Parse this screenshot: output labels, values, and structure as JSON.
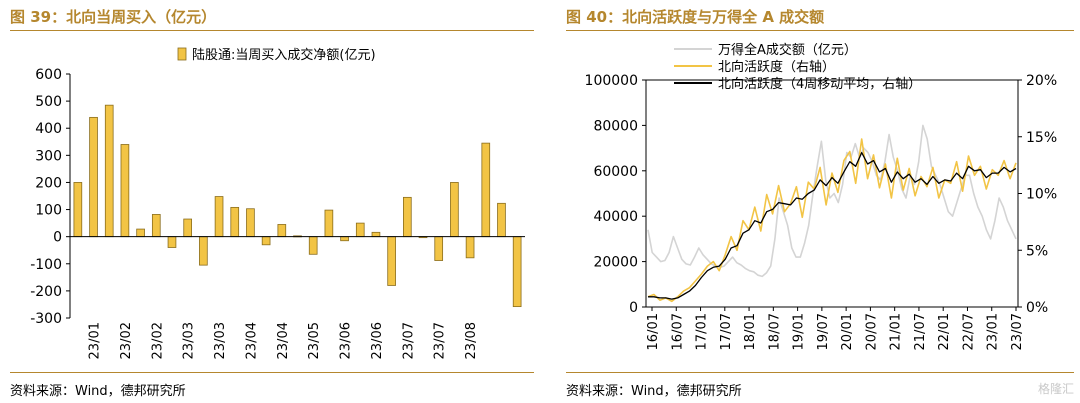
{
  "left": {
    "title": "图 39：北向当周买入（亿元）",
    "source": "资料来源：Wind，德邦研究所",
    "chart_data": {
      "type": "bar",
      "legend": "陆股通:当周买入成交净额(亿元)",
      "legend_position": "top-right",
      "ylim": [
        -300,
        600
      ],
      "yticks": [
        600,
        500,
        400,
        300,
        200,
        100,
        0,
        -100,
        -200,
        -300
      ],
      "xticks": [
        "23/01",
        "23/02",
        "23/02",
        "23/03",
        "23/03",
        "23/04",
        "23/04",
        "23/05",
        "23/06",
        "23/06",
        "23/07",
        "23/07",
        "23/08"
      ],
      "values": [
        200,
        440,
        485,
        340,
        28,
        82,
        -40,
        65,
        -105,
        148,
        108,
        103,
        -30,
        45,
        3,
        -65,
        98,
        -15,
        50,
        16,
        -180,
        145,
        -3,
        -88,
        200,
        -78,
        345,
        123,
        -258
      ],
      "bar_color": "#f2c445"
    }
  },
  "right": {
    "title": "图 40：北向活跃度与万得全 A 成交额",
    "source": "资料来源：Wind，德邦研究所",
    "watermark": "格隆汇",
    "chart_data": {
      "type": "line",
      "legend_position": "top",
      "xticks": [
        "16/01",
        "16/07",
        "17/01",
        "17/07",
        "18/01",
        "18/07",
        "19/01",
        "19/07",
        "20/01",
        "20/07",
        "21/01",
        "21/07",
        "22/01",
        "22/07",
        "23/01",
        "23/07"
      ],
      "x_range": [
        "2016-01",
        "2023-08"
      ],
      "left_axis": {
        "ylim": [
          0,
          100000
        ],
        "ticks": [
          0,
          20000,
          40000,
          60000,
          80000,
          100000
        ]
      },
      "right_axis": {
        "ylim": [
          0,
          20
        ],
        "ticks": [
          "0%",
          "5%",
          "10%",
          "15%",
          "20%"
        ]
      },
      "series": [
        {
          "name": "万得全A成交额（亿元）",
          "axis": "left",
          "color": "#d4d4d4",
          "values": [
            34000,
            24000,
            22000,
            20000,
            20500,
            24000,
            31000,
            26000,
            21000,
            19000,
            18500,
            22000,
            26000,
            23000,
            21000,
            19000,
            18000,
            17500,
            18000,
            20000,
            22000,
            19500,
            18500,
            17000,
            16000,
            15500,
            14000,
            13500,
            15000,
            18000,
            30000,
            48000,
            42000,
            36000,
            26000,
            22000,
            22000,
            28000,
            36000,
            50000,
            62000,
            73000,
            56000,
            48000,
            50000,
            46000,
            54000,
            68000,
            66000,
            72000,
            66000,
            70000,
            68000,
            64000,
            58000,
            56000,
            64000,
            76000,
            66000,
            60000,
            52000,
            48000,
            58000,
            54000,
            64000,
            80000,
            74000,
            62000,
            58000,
            54000,
            48000,
            42000,
            40000,
            46000,
            52000,
            58000,
            58000,
            50000,
            44000,
            40000,
            34000,
            30000,
            38000,
            48000,
            44000,
            38000,
            34000,
            30000
          ]
        },
        {
          "name": "北向活跃度（右轴）",
          "axis": "right",
          "color": "#f2c445",
          "values": [
            0.9,
            1.1,
            0.6,
            0.8,
            0.5,
            0.9,
            1.4,
            1.7,
            2.3,
            2.9,
            3.6,
            4.0,
            3.2,
            4.6,
            6.2,
            5.0,
            7.6,
            6.8,
            8.8,
            6.7,
            9.9,
            8.2,
            10.7,
            8.4,
            9.1,
            10.6,
            7.9,
            11.0,
            10.4,
            12.3,
            9.0,
            11.8,
            10.1,
            12.9,
            13.7,
            10.9,
            14.8,
            11.3,
            13.4,
            10.5,
            12.6,
            9.6,
            13.1,
            10.3,
            12.2,
            9.8,
            11.5,
            10.6,
            12.3,
            9.6,
            11.2,
            10.9,
            12.8,
            10.2,
            13.3,
            11.6,
            12.4,
            10.4,
            12.1,
            11.6,
            12.9,
            11.3,
            12.7
          ]
        },
        {
          "name": "北向活跃度（4周移动平均，右轴）",
          "axis": "right",
          "color": "#000000",
          "values": [
            0.9,
            0.9,
            0.8,
            0.8,
            0.7,
            0.8,
            1.1,
            1.4,
            1.9,
            2.6,
            3.2,
            3.5,
            3.6,
            4.2,
            5.2,
            5.4,
            6.5,
            6.8,
            7.6,
            7.4,
            8.4,
            8.6,
            9.2,
            9.1,
            9.0,
            9.6,
            9.5,
            10.0,
            10.3,
            11.2,
            10.7,
            11.4,
            10.9,
            11.9,
            12.8,
            12.4,
            13.6,
            12.6,
            12.9,
            11.9,
            12.2,
            11.0,
            11.9,
            11.3,
            11.7,
            11.0,
            11.3,
            10.8,
            11.5,
            10.9,
            11.2,
            11.1,
            11.8,
            11.3,
            12.4,
            12.0,
            12.1,
            11.4,
            11.8,
            11.8,
            12.3,
            11.9,
            12.2
          ]
        }
      ]
    }
  }
}
